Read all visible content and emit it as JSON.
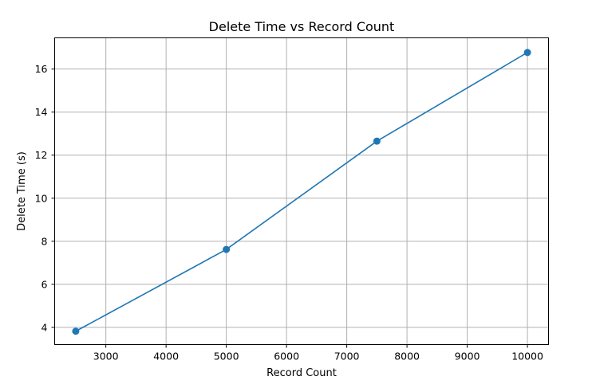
{
  "chart_data": {
    "type": "line",
    "title": "Delete Time vs Record Count",
    "xlabel": "Record Count",
    "ylabel": "Delete Time (s)",
    "xlim": [
      2150,
      10350
    ],
    "ylim": [
      3.2,
      17.45
    ],
    "xticks": [
      3000,
      4000,
      5000,
      6000,
      7000,
      8000,
      9000,
      10000
    ],
    "yticks": [
      4,
      6,
      8,
      10,
      12,
      14,
      16
    ],
    "grid": true,
    "series": [
      {
        "color": "#1f77b4",
        "marker": "circle",
        "x": [
          2500,
          5000,
          7500,
          10000
        ],
        "y": [
          3.82,
          7.62,
          12.65,
          16.77
        ]
      }
    ]
  }
}
